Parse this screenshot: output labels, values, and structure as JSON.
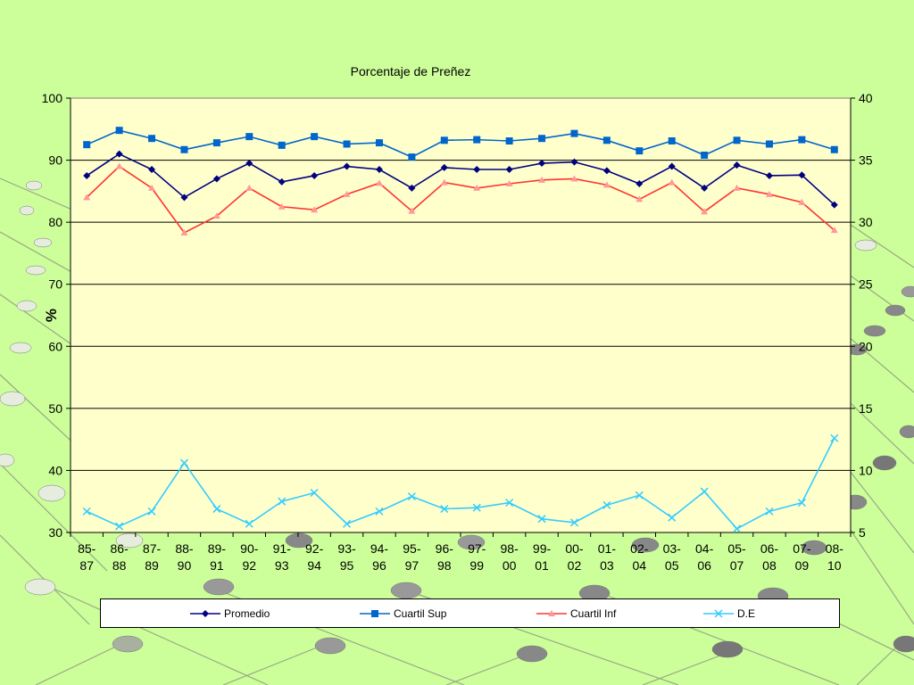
{
  "chart_data": {
    "type": "line",
    "title": "Porcentaje de Preñez",
    "ylabel": "%",
    "ylim": [
      30,
      100
    ],
    "y2lim": [
      5,
      40
    ],
    "yticks": [
      30,
      40,
      50,
      60,
      70,
      80,
      90,
      100
    ],
    "y2ticks": [
      5,
      10,
      15,
      20,
      25,
      30,
      35,
      40
    ],
    "grid": true,
    "legend_position": "bottom",
    "categories": [
      [
        "85-",
        "87"
      ],
      [
        "86-",
        "88"
      ],
      [
        "87-",
        "89"
      ],
      [
        "88-",
        "90"
      ],
      [
        "89-",
        "91"
      ],
      [
        "90-",
        "92"
      ],
      [
        "91-",
        "93"
      ],
      [
        "92-",
        "94"
      ],
      [
        "93-",
        "95"
      ],
      [
        "94-",
        "96"
      ],
      [
        "95-",
        "97"
      ],
      [
        "96-",
        "98"
      ],
      [
        "97-",
        "99"
      ],
      [
        "98-",
        "00"
      ],
      [
        "99-",
        "01"
      ],
      [
        "00-",
        "02"
      ],
      [
        "01-",
        "03"
      ],
      [
        "02-",
        "04"
      ],
      [
        "03-",
        "05"
      ],
      [
        "04-",
        "06"
      ],
      [
        "05-",
        "07"
      ],
      [
        "06-",
        "08"
      ],
      [
        "07-",
        "09"
      ],
      [
        "08-",
        "10"
      ]
    ],
    "series": [
      {
        "name": "Promedio",
        "axis": "left",
        "color": "#000080",
        "marker": "diamond",
        "values": [
          87.5,
          91,
          88.5,
          84,
          87,
          89.5,
          86.5,
          87.5,
          89,
          88.5,
          85.5,
          88.8,
          88.5,
          88.5,
          89.5,
          89.7,
          88.3,
          86.2,
          89,
          85.5,
          89.2,
          87.5,
          87.6,
          82.8
        ]
      },
      {
        "name": "Cuartil Sup",
        "axis": "left",
        "color": "#0066cc",
        "marker": "square",
        "values": [
          92.5,
          94.8,
          93.5,
          91.7,
          92.8,
          93.8,
          92.4,
          93.8,
          92.6,
          92.8,
          90.5,
          93.2,
          93.3,
          93.1,
          93.5,
          94.3,
          93.2,
          91.5,
          93.1,
          90.8,
          93.2,
          92.6,
          93.3,
          91.7
        ]
      },
      {
        "name": "Cuartil Inf",
        "axis": "left",
        "color": "#ff3333",
        "marker": "triangle",
        "values": [
          84,
          89,
          85.5,
          78.3,
          81,
          85.5,
          82.5,
          82,
          84.5,
          86.3,
          81.8,
          86.4,
          85.5,
          86.2,
          86.8,
          87,
          86,
          83.7,
          86.4,
          81.7,
          85.5,
          84.5,
          83.2,
          78.7
        ]
      },
      {
        "name": "D.E",
        "axis": "right",
        "color": "#33ccff",
        "marker": "x",
        "values": [
          6.7,
          5.5,
          6.7,
          10.6,
          6.9,
          5.7,
          7.5,
          8.2,
          5.7,
          6.7,
          7.9,
          6.9,
          7,
          7.4,
          6.1,
          5.8,
          7.2,
          8,
          6.2,
          8.3,
          5.3,
          6.7,
          7.4,
          12.6
        ]
      }
    ]
  }
}
